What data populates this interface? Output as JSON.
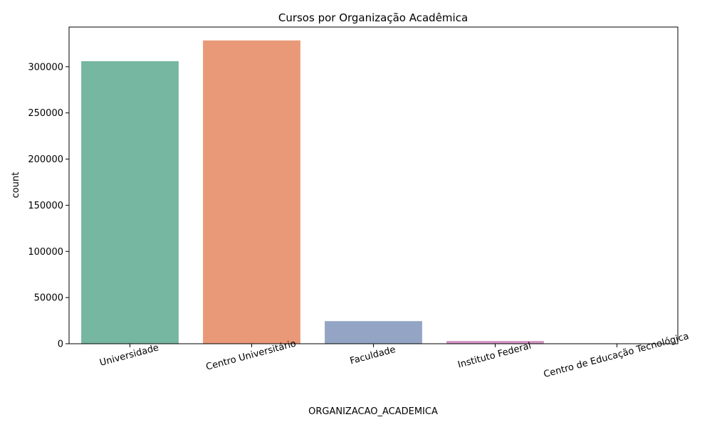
{
  "chart_data": {
    "type": "bar",
    "title": "Cursos por Organização Acadêmica",
    "xlabel": "ORGANIZACAO_ACADEMICA",
    "ylabel": "count",
    "categories": [
      "Universidade",
      "Centro Universitário",
      "Faculdade",
      "Instituto Federal",
      "Centro de Educação Tecnológica"
    ],
    "values": [
      306000,
      328500,
      24500,
      3000,
      200
    ],
    "colors": [
      "#75b7a1",
      "#ea9978",
      "#94a4c4",
      "#d395c4",
      "#a5cf7a"
    ],
    "ylim": [
      0,
      343000
    ],
    "yticks": [
      0,
      50000,
      100000,
      150000,
      200000,
      250000,
      300000
    ],
    "grid": false,
    "legend": "none"
  }
}
